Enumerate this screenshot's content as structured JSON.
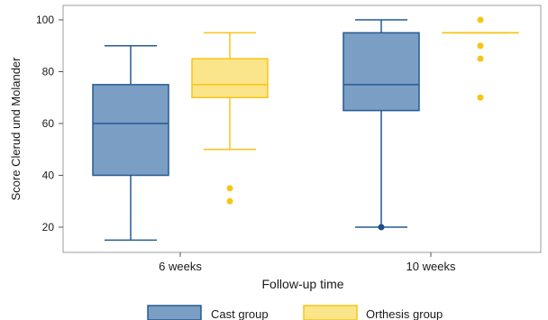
{
  "chart_data": {
    "type": "box",
    "title": "",
    "xlabel": "Follow-up time",
    "ylabel": "Score Clerud und Molander",
    "categories": [
      "6 weeks",
      "10 weeks"
    ],
    "ylim": [
      12,
      104
    ],
    "yticks": [
      20,
      40,
      60,
      80,
      100
    ],
    "grid": false,
    "legend_position": "bottom",
    "series": [
      {
        "name": "Cast group",
        "color": "#7b9ec4",
        "edge_color": "#255a92",
        "boxes": [
          {
            "category": "6 weeks",
            "min": 15,
            "q1": 40,
            "median": 60,
            "q3": 75,
            "max": 90,
            "outliers": []
          },
          {
            "category": "10 weeks",
            "min": 20,
            "q1": 65,
            "median": 75,
            "q3": 95,
            "max": 100,
            "outliers": [
              20
            ]
          }
        ]
      },
      {
        "name": "Orthesis group",
        "color": "#fbe58a",
        "edge_color": "#f5c518",
        "boxes": [
          {
            "category": "6 weeks",
            "min": 50,
            "q1": 70,
            "median": 75,
            "q3": 85,
            "max": 95,
            "outliers": [
              30,
              35
            ]
          },
          {
            "category": "10 weeks",
            "min": 95,
            "q1": 95,
            "median": 95,
            "q3": 95,
            "max": 95,
            "outliers": [
              70,
              85,
              90,
              100
            ]
          }
        ]
      }
    ]
  }
}
